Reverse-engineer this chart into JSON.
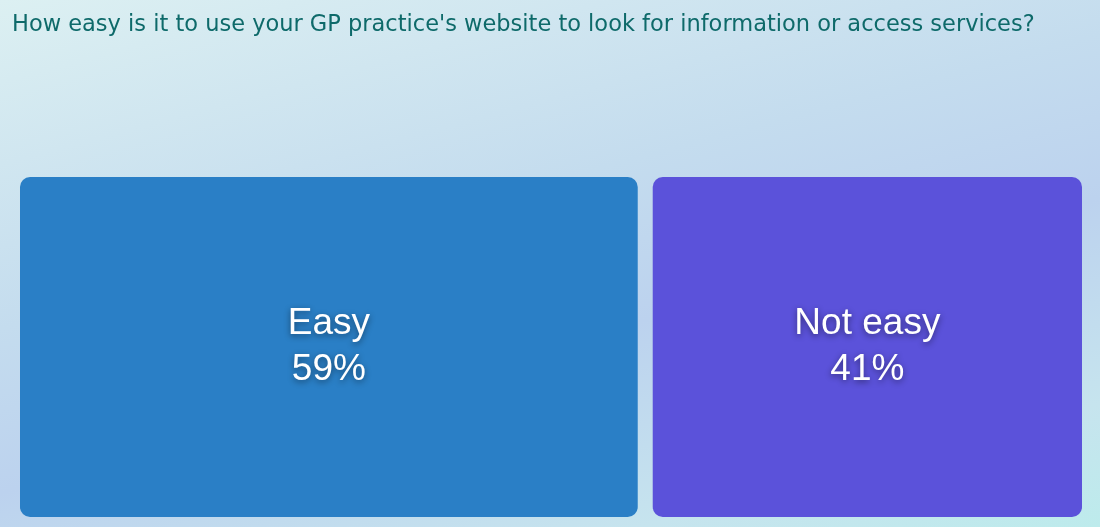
{
  "chart_data": {
    "type": "other",
    "title": "How easy is it to use your GP practice's website to look for information or access services?",
    "categories": [
      "Easy",
      "Not easy"
    ],
    "values": [
      59,
      41
    ],
    "value_labels": [
      "59%",
      "41%"
    ],
    "colors": [
      "#2a7fc6",
      "#5b52da"
    ]
  }
}
